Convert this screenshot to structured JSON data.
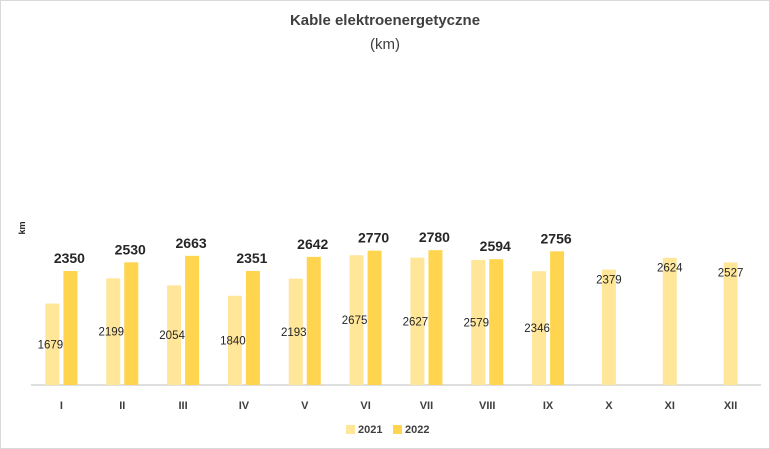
{
  "chart_data": {
    "type": "bar",
    "title": "Kable elektroenergetyczne",
    "subtitle": "(km)",
    "xlabel": "",
    "ylabel": "km",
    "categories": [
      "I",
      "II",
      "III",
      "IV",
      "V",
      "VI",
      "VII",
      "VIII",
      "IX",
      "X",
      "XI",
      "XII"
    ],
    "series": [
      {
        "name": "2021",
        "values": [
          1679,
          2199,
          2054,
          1840,
          2193,
          2675,
          2627,
          2579,
          2346,
          2379,
          2624,
          2527
        ]
      },
      {
        "name": "2022",
        "values": [
          2350,
          2530,
          2663,
          2351,
          2642,
          2770,
          2780,
          2594,
          2756,
          null,
          null,
          null
        ]
      }
    ],
    "ylim": [
      0,
      6000
    ],
    "grid": false,
    "legend": "bottom",
    "colors": {
      "2021": "#FFE699",
      "2022": "#FFD44F",
      "axis": "#bfbfbf",
      "text": "#404040"
    }
  }
}
